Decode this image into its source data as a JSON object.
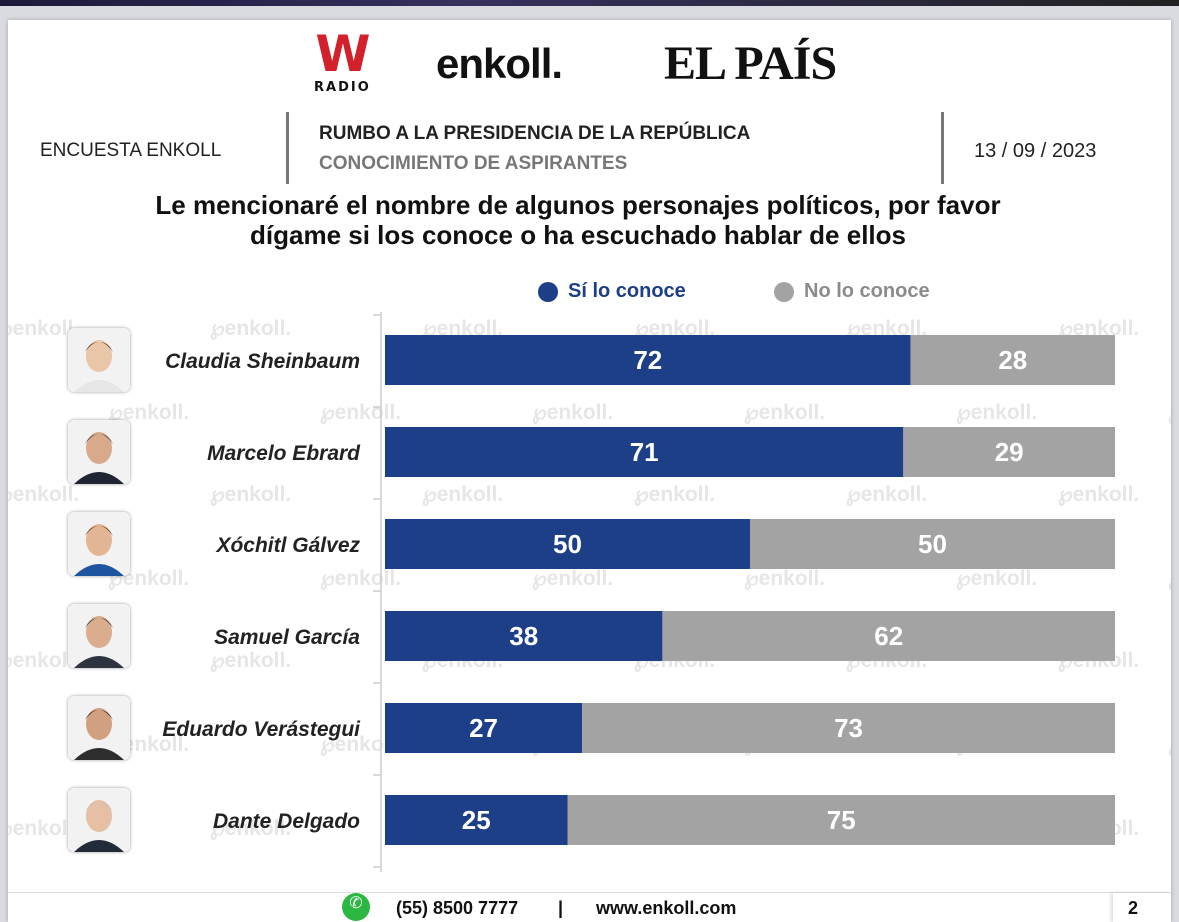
{
  "logos": {
    "w_letter": "W",
    "w_sub": "RADIO",
    "enkoll": "enkoll.",
    "elpais": "EL PAÍS"
  },
  "header": {
    "left": "ENCUESTA ENKOLL",
    "title": "RUMBO A LA PRESIDENCIA DE LA REPÚBLICA",
    "subtitle": "CONOCIMIENTO DE ASPIRANTES",
    "date": "13 / 09 / 2023"
  },
  "question": [
    "Le mencionaré el nombre de algunos personajes políticos, por favor",
    "dígame si los conoce o ha escuchado hablar de ellos"
  ],
  "watermark": "enkoll.",
  "colors": {
    "si": "#1c3f87",
    "no": "#a3a3a3",
    "axis": "#cccccc"
  },
  "chart_data": {
    "type": "bar",
    "orientation": "horizontal",
    "stacked": true,
    "normalized": true,
    "categories": [
      "Claudia Sheinbaum",
      "Marcelo Ebrard",
      "Xóchitl Gálvez",
      "Samuel García",
      "Eduardo Verástegui",
      "Dante Delgado"
    ],
    "series": [
      {
        "name": "Sí lo conoce",
        "values": [
          72,
          71,
          50,
          38,
          27,
          25
        ]
      },
      {
        "name": "No lo conoce",
        "values": [
          28,
          29,
          50,
          62,
          73,
          75
        ]
      }
    ],
    "xlim": [
      0,
      100
    ],
    "legend_position": "top",
    "data_labels": true
  },
  "footer": {
    "icon": "whatsapp-icon",
    "phone": "(55) 8500 7777",
    "separator": "|",
    "website": "www.enkoll.com",
    "page": "2"
  }
}
